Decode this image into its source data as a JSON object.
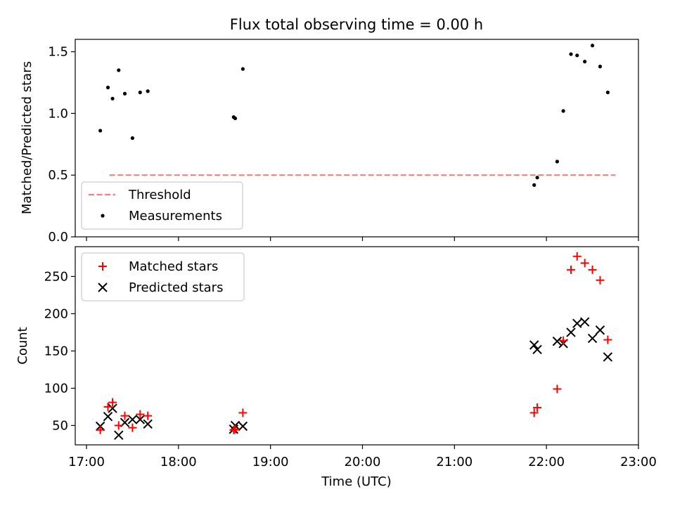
{
  "chart_data": [
    {
      "type": "scatter",
      "title": "Flux total observing time = 0.00 h",
      "xlabel": "",
      "ylabel": "Matched/Predicted stars",
      "ylim": [
        0,
        1.6
      ],
      "yticks": [
        "0.0",
        "0.5",
        "1.0",
        "1.5"
      ],
      "xlim": [
        "17:00",
        "23:00"
      ],
      "legend_position": "lower-left",
      "grid": false,
      "series": [
        {
          "name": "Threshold",
          "kind": "dashed-line",
          "color": "#f08080",
          "x": [
            "17:15",
            "22:45"
          ],
          "y": [
            0.5,
            0.5
          ]
        },
        {
          "name": "Measurements",
          "kind": "points",
          "color": "#000000",
          "x": [
            "17:09",
            "17:14",
            "17:17",
            "17:21",
            "17:25",
            "17:30",
            "17:35",
            "17:40",
            "18:36",
            "18:37",
            "18:42",
            "21:52",
            "21:54",
            "22:07",
            "22:11",
            "22:16",
            "22:20",
            "22:25",
            "22:30",
            "22:35",
            "22:40"
          ],
          "y": [
            0.86,
            1.21,
            1.12,
            1.35,
            1.16,
            0.8,
            1.17,
            1.18,
            0.97,
            0.96,
            1.36,
            0.42,
            0.48,
            0.61,
            1.02,
            1.48,
            1.47,
            1.42,
            1.55,
            1.38,
            1.17
          ]
        }
      ]
    },
    {
      "type": "scatter",
      "title": "",
      "xlabel": "Time (UTC)",
      "ylabel": "Count",
      "ylim": [
        24,
        290
      ],
      "yticks": [
        "50",
        "100",
        "150",
        "200",
        "250"
      ],
      "xticks": [
        "17:00",
        "18:00",
        "19:00",
        "20:00",
        "21:00",
        "22:00",
        "23:00"
      ],
      "legend_position": "top-left",
      "grid": false,
      "series": [
        {
          "name": "Matched stars",
          "marker": "plus",
          "color": "#ff0000",
          "x": [
            "17:09",
            "17:14",
            "17:17",
            "17:21",
            "17:25",
            "17:30",
            "17:35",
            "17:40",
            "18:36",
            "18:37",
            "18:42",
            "21:52",
            "21:54",
            "22:07",
            "22:11",
            "22:16",
            "22:20",
            "22:25",
            "22:30",
            "22:35",
            "22:40"
          ],
          "y": [
            44,
            75,
            81,
            50,
            63,
            47,
            65,
            63,
            44,
            45,
            67,
            67,
            74,
            99,
            164,
            259,
            277,
            268,
            259,
            245,
            165
          ]
        },
        {
          "name": "Predicted stars",
          "marker": "x",
          "color": "#000000",
          "x": [
            "17:09",
            "17:14",
            "17:17",
            "17:21",
            "17:25",
            "17:30",
            "17:35",
            "17:40",
            "18:36",
            "18:37",
            "18:42",
            "21:52",
            "21:54",
            "22:07",
            "22:11",
            "22:16",
            "22:20",
            "22:25",
            "22:30",
            "22:35",
            "22:40"
          ],
          "y": [
            49,
            62,
            73,
            37,
            54,
            58,
            58,
            52,
            45,
            50,
            49,
            158,
            152,
            163,
            160,
            175,
            187,
            189,
            167,
            178,
            142
          ]
        }
      ]
    }
  ]
}
